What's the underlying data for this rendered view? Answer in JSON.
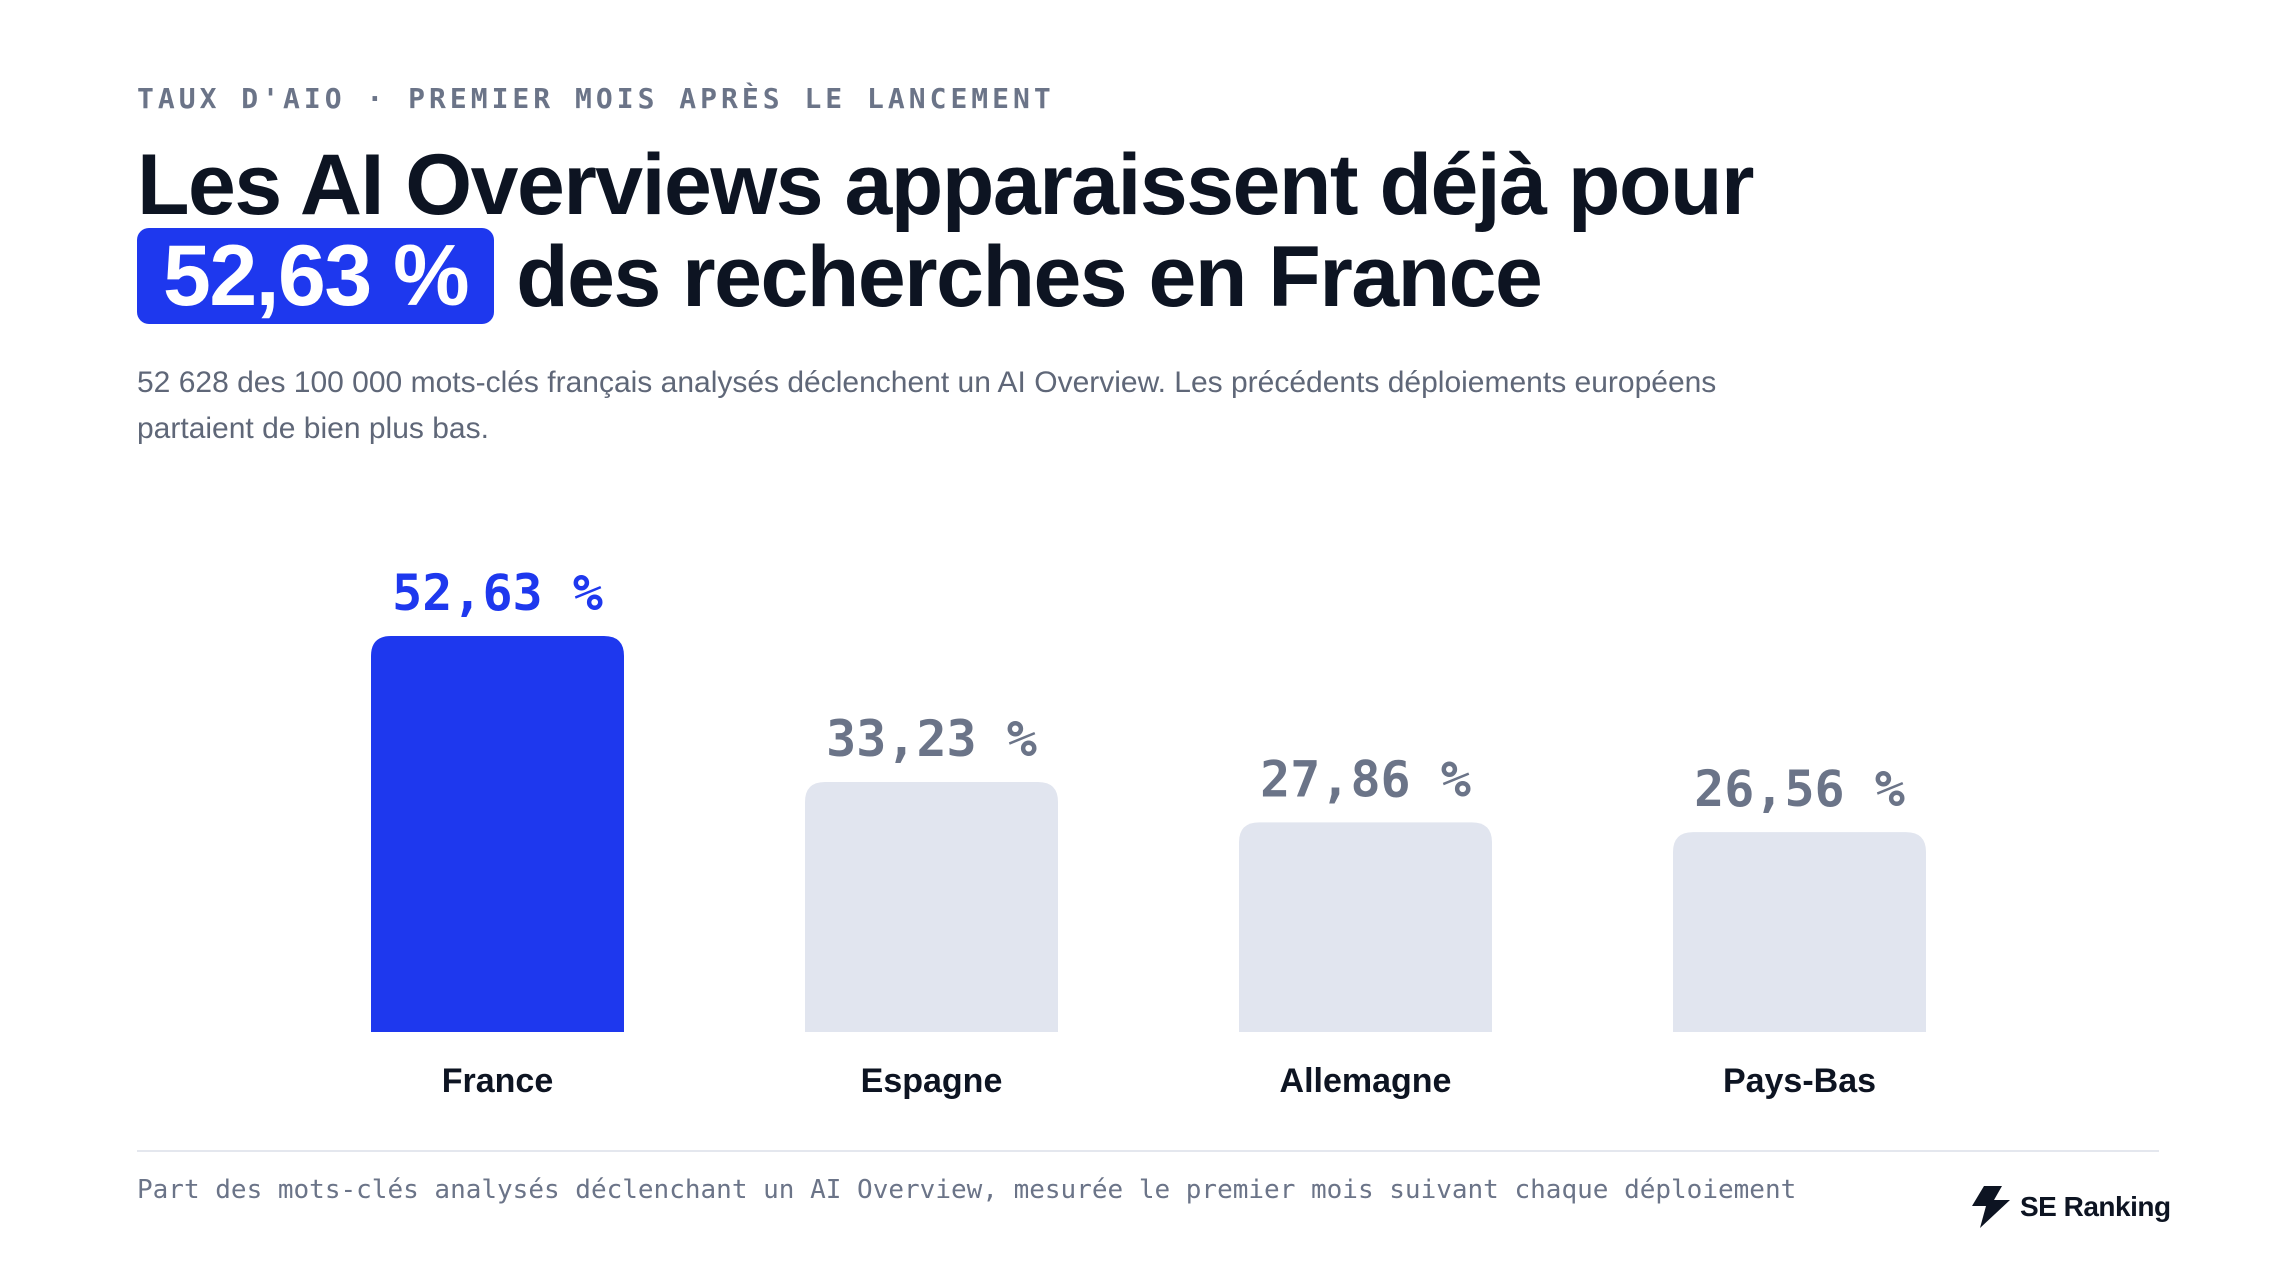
{
  "eyebrow": "TAUX D'AIO · PREMIER MOIS APRÈS LE LANCEMENT",
  "headline": {
    "line1": "Les AI Overviews apparaissent déjà pour",
    "highlight": "52,63 %",
    "line2_rest": "des recherches en France"
  },
  "subtitle": "52 628 des 100 000 mots-clés français analysés déclenchent un AI Overview. Les précédents déploiements européens partaient de bien plus bas.",
  "footnote": "Part des mots-clés analysés déclenchant un AI Overview, mesurée le premier mois suivant chaque déploiement",
  "brand": {
    "name": "SE Ranking",
    "icon": "se-ranking-logo-icon"
  },
  "colors": {
    "accent": "#1e38ee",
    "muted_bar": "#e1e5ef",
    "muted_label": "#6b7488",
    "text_dark": "#0d1422"
  },
  "chart_data": {
    "type": "bar",
    "categories": [
      "France",
      "Espagne",
      "Allemagne",
      "Pays-Bas"
    ],
    "values": [
      52.63,
      33.23,
      27.86,
      26.56
    ],
    "value_labels": [
      "52,63 %",
      "33,23 %",
      "27,86 %",
      "26,56 %"
    ],
    "highlight_index": 0,
    "title": "",
    "xlabel": "",
    "ylabel": "",
    "ylim": [
      0,
      52.63
    ],
    "grid": false,
    "legend": "none"
  }
}
